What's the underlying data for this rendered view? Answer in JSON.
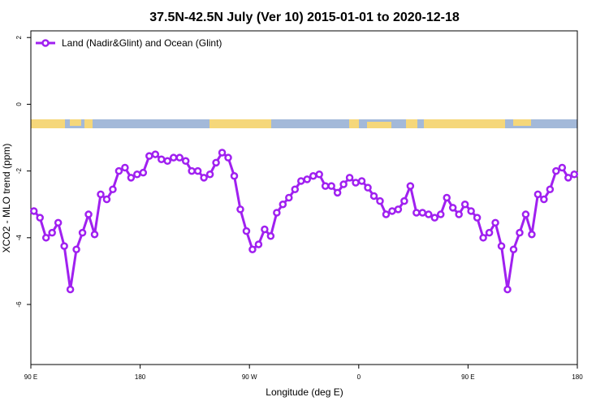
{
  "chart_data": {
    "type": "line",
    "title": "37.5N-42.5N July (Ver 10)   2015-01-01 to 2020-12-18",
    "x_label": "Longitude (deg E)",
    "y_label": "XCO2 - MLO trend (ppm)",
    "x": [
      92.5,
      97.5,
      102.5,
      107.5,
      112.5,
      117.5,
      122.5,
      127.5,
      132.5,
      137.5,
      142.5,
      147.5,
      152.5,
      157.5,
      162.5,
      167.5,
      172.5,
      177.5,
      182.5,
      187.5,
      192.5,
      197.5,
      202.5,
      207.5,
      212.5,
      217.5,
      222.5,
      227.5,
      232.5,
      237.5,
      242.5,
      247.5,
      252.5,
      257.5,
      262.5,
      267.5,
      272.5,
      277.5,
      282.5,
      287.5,
      292.5,
      297.5,
      302.5,
      307.5,
      312.5,
      317.5,
      322.5,
      327.5,
      332.5,
      337.5,
      342.5,
      347.5,
      352.5,
      357.5,
      362.5,
      367.5,
      372.5,
      377.5,
      382.5,
      387.5,
      392.5,
      397.5,
      402.5,
      407.5,
      412.5,
      417.5,
      422.5,
      427.5,
      432.5,
      437.5,
      442.5,
      447.5,
      452.5,
      457.5,
      462.5,
      467.5,
      472.5,
      477.5,
      482.5,
      487.5,
      492.5,
      497.5,
      502.5,
      507.5,
      512.5,
      517.5,
      522.5,
      527.5,
      532.5,
      537.5
    ],
    "series": [
      {
        "name": "Land (Nadir&Glint) and Ocean (Glint)",
        "color": "#a020f0",
        "values": [
          -3.2,
          -3.4,
          -4.0,
          -3.85,
          -3.55,
          -4.25,
          -5.55,
          -4.35,
          -3.85,
          -3.3,
          -3.9,
          -2.7,
          -2.85,
          -2.55,
          -2.0,
          -1.9,
          -2.2,
          -2.1,
          -2.05,
          -1.55,
          -1.5,
          -1.65,
          -1.7,
          -1.6,
          -1.6,
          -1.7,
          -2.0,
          -2.0,
          -2.2,
          -2.1,
          -1.75,
          -1.45,
          -1.6,
          -2.15,
          -3.15,
          -3.8,
          -4.35,
          -4.2,
          -3.75,
          -3.95,
          -3.25,
          -3.0,
          -2.8,
          -2.55,
          -2.3,
          -2.25,
          -2.15,
          -2.1,
          -2.45,
          -2.45,
          -2.65,
          -2.4,
          -2.2,
          -2.35,
          -2.3,
          -2.5,
          -2.75,
          -2.9,
          -3.3,
          -3.2,
          -3.15,
          -2.9,
          -2.45,
          -3.25,
          -3.25,
          -3.3,
          -3.4,
          -3.3,
          -2.8,
          -3.1,
          -3.3,
          -3.0,
          -3.2,
          -3.4,
          -4.0,
          -3.85,
          -3.55,
          -4.25,
          -5.55,
          -4.35,
          -3.85,
          -3.3,
          -3.9,
          -2.7,
          -2.85,
          -2.55,
          -2.0,
          -1.9,
          -2.2,
          -2.1
        ]
      }
    ],
    "xlim": [
      90,
      540
    ],
    "xticks": [
      {
        "value": 90,
        "label": "90 E"
      },
      180,
      {
        "value": 270,
        "label": "90 W"
      },
      {
        "value": 360,
        "label": "0"
      },
      {
        "value": 450,
        "label": "90 E"
      },
      {
        "value": 540,
        "label": "180"
      }
    ],
    "ylim": [
      -7.8,
      2.2
    ],
    "yticks": [
      2,
      0,
      -2,
      -4,
      -6
    ],
    "grid": false,
    "legend": "top-left"
  }
}
